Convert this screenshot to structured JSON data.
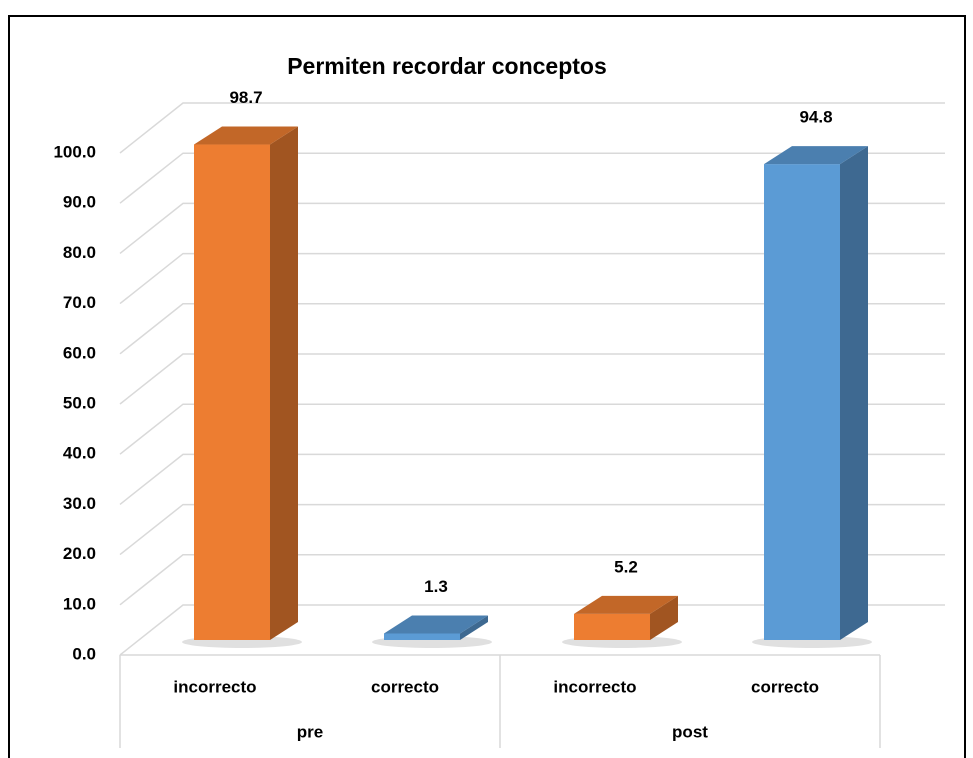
{
  "chart_data": {
    "type": "bar3d",
    "title": "Permiten recordar conceptos",
    "categories": [
      "incorrecto",
      "correcto",
      "incorrecto",
      "correcto"
    ],
    "groups": [
      "pre",
      "post"
    ],
    "values": [
      98.7,
      1.3,
      5.2,
      94.8
    ],
    "colors": [
      "#ed7d31",
      "#5b9bd5",
      "#ed7d31",
      "#5b9bd5"
    ],
    "ylim": [
      0,
      100
    ],
    "yticks": [
      {
        "value": 0,
        "label": "0.0"
      },
      {
        "value": 10,
        "label": "10.0"
      },
      {
        "value": 20,
        "label": "20.0"
      },
      {
        "value": 30,
        "label": "30.0"
      },
      {
        "value": 40,
        "label": "40.0"
      },
      {
        "value": 50,
        "label": "50.0"
      },
      {
        "value": 60,
        "label": "60.0"
      },
      {
        "value": 70,
        "label": "70.0"
      },
      {
        "value": 80,
        "label": "80.0"
      },
      {
        "value": 90,
        "label": "90.0"
      },
      {
        "value": 100,
        "label": "100.0"
      }
    ],
    "grid": true
  }
}
